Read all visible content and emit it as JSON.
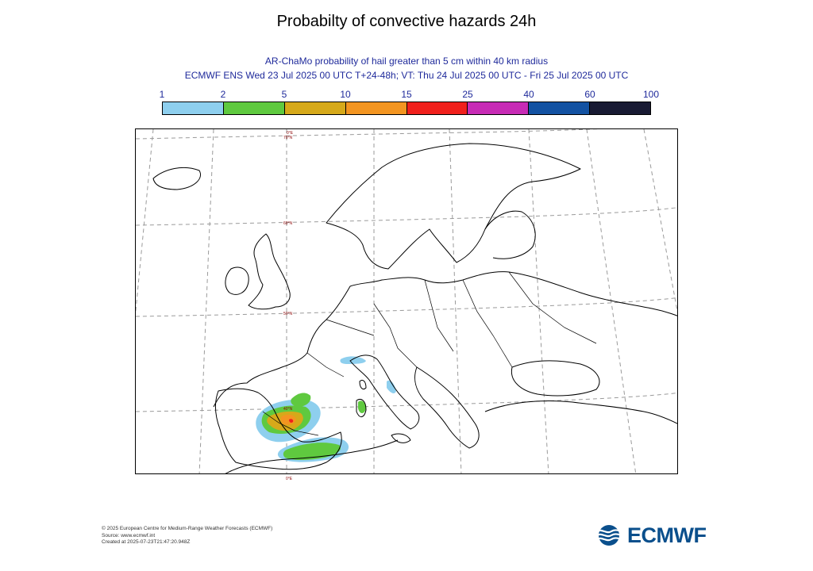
{
  "title": "Probabilty of convective hazards 24h",
  "subtitle1": "AR-ChaMo probability of hail greater than 5 cm within 40 km radius",
  "subtitle2": "ECMWF ENS Wed 23 Jul 2025 00 UTC T+24-48h; VT: Thu 24 Jul 2025 00 UTC - Fri 25 Jul 2025 00 UTC",
  "colorbar": {
    "levels": [
      "1",
      "2",
      "5",
      "10",
      "15",
      "25",
      "40",
      "60",
      "100"
    ],
    "colors": [
      "#8ecfee",
      "#5fc93f",
      "#d6a91a",
      "#f39521",
      "#f0201c",
      "#c72bb5",
      "#1352a2",
      "#181a33"
    ]
  },
  "map": {
    "lon_labels": {
      "top": "0°E",
      "bottom": "0°E"
    },
    "lat_labels": [
      "70°N",
      "60°N",
      "50°N",
      "40°N"
    ],
    "hazard_levels_present": [
      "1",
      "2",
      "5",
      "10",
      "15"
    ]
  },
  "footer": {
    "line1": "© 2025 European Centre for Medium-Range Weather Forecasts (ECMWF)",
    "line2": "Source: www.ecmwf.int",
    "line3": "Created at 2025-07-23T21:47:20.948Z"
  },
  "logo": {
    "text": "ECMWF",
    "icon": "ecmwf-wave-logo-icon",
    "color": "#0a4f8c"
  }
}
